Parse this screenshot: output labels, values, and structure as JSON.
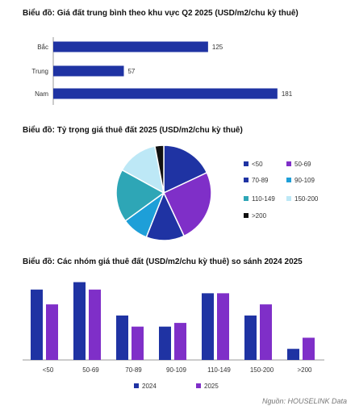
{
  "colors": {
    "navy": "#1f33a3",
    "purple": "#7f2fc8",
    "blue": "#1e9fd8",
    "teal": "#2ea6b6",
    "lightblue": "#bde8f6",
    "black": "#111111"
  },
  "source": "Nguồn: HOUSELINK Data",
  "chart_data": [
    {
      "type": "bar",
      "orientation": "horizontal",
      "title": "Biểu đồ: Giá đất trung bình theo khu vực Q2 2025 (USD/m2/chu kỳ thuê)",
      "categories": [
        "Bắc",
        "Trung",
        "Nam"
      ],
      "values": [
        125,
        57,
        181
      ],
      "data_labels": [
        "125",
        "57",
        "181"
      ],
      "xlim": [
        0,
        200
      ],
      "grid": false
    },
    {
      "type": "pie",
      "title": "Biểu đồ: Tỷ trọng giá thuê đất 2025 (USD/m2/chu kỳ thuê)",
      "labels": [
        "<50",
        "50-69",
        "70-89",
        "90-109",
        "110-149",
        "150-200",
        ">200"
      ],
      "values": [
        18,
        25,
        13,
        9,
        18,
        14,
        3
      ],
      "legend_position": "right"
    },
    {
      "type": "bar",
      "title": "Biểu đồ: Các nhóm giá thuê đất (USD/m2/chu kỳ thuê) so sánh 2024 2025",
      "categories": [
        "<50",
        "50-69",
        "70-89",
        "90-109",
        "110-149",
        "150-200",
        ">200"
      ],
      "series": [
        {
          "name": "2024",
          "values": [
            19,
            21,
            12,
            9,
            18,
            12,
            3
          ]
        },
        {
          "name": "2025",
          "values": [
            15,
            19,
            9,
            10,
            18,
            15,
            6
          ]
        }
      ],
      "ylim": [
        0,
        22
      ],
      "legend_position": "bottom",
      "grid": false
    }
  ]
}
